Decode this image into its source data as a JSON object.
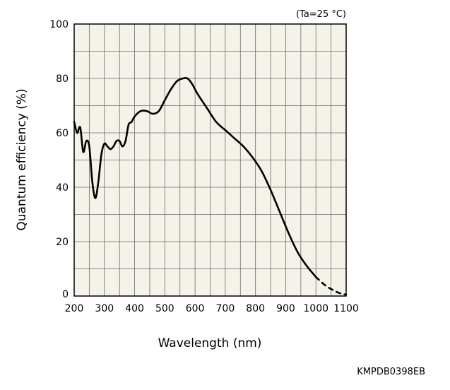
{
  "chart_data": {
    "type": "line",
    "condition": "(Ta=25 °C)",
    "xlabel": "Wavelength (nm)",
    "ylabel": "Quantum efficiency (%)",
    "xlim": [
      200,
      1100
    ],
    "ylim": [
      0,
      100
    ],
    "xticks": [
      200,
      300,
      400,
      500,
      600,
      700,
      800,
      900,
      1000,
      1100
    ],
    "yticks": [
      0,
      20,
      40,
      60,
      80,
      100
    ],
    "grid": true,
    "code": "KMPDB0398EB",
    "background": "#f4f2e9",
    "series": [
      {
        "style": "solid",
        "x": [
          200,
          210,
          220,
          230,
          240,
          250,
          260,
          270,
          280,
          290,
          300,
          310,
          320,
          330,
          340,
          350,
          360,
          370,
          380,
          390,
          400,
          420,
          440,
          460,
          480,
          500,
          520,
          540,
          560,
          575,
          590,
          610,
          640,
          670,
          700,
          730,
          760,
          790,
          820,
          850,
          880,
          910,
          940,
          970,
          1000
        ],
        "y": [
          64,
          60,
          62,
          53,
          57,
          55,
          42,
          36,
          42,
          52,
          56,
          55,
          54,
          55,
          57,
          57,
          55,
          57,
          63,
          64,
          66,
          68,
          68,
          67,
          68,
          72,
          76,
          79,
          80,
          80,
          78,
          74,
          69,
          64,
          61,
          58,
          55,
          51,
          46,
          39,
          31,
          23,
          16,
          11,
          7
        ]
      },
      {
        "style": "dashed",
        "x": [
          1000,
          1030,
          1060,
          1080,
          1100
        ],
        "y": [
          7,
          4,
          2,
          1,
          0.5
        ]
      }
    ]
  }
}
